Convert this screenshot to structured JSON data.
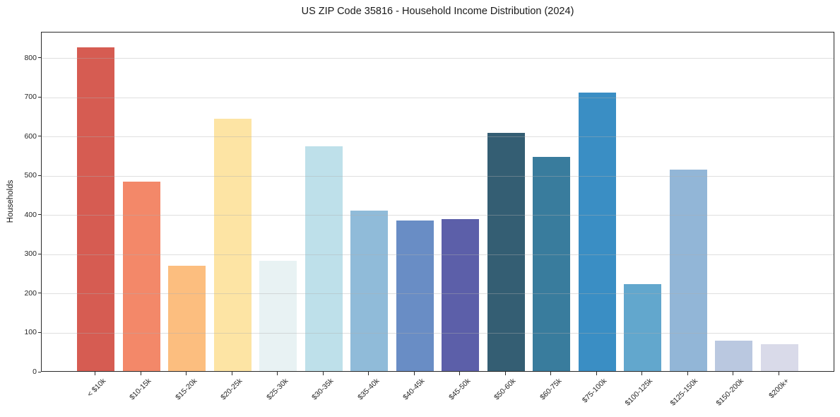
{
  "title": "US ZIP Code 35816 - Household Income Distribution (2024)",
  "chart_data": {
    "type": "bar",
    "title": "US ZIP Code 35816 - Household Income Distribution (2024)",
    "xlabel": "",
    "ylabel": "Households",
    "categories": [
      "< $10k",
      "$10-15k",
      "$15-20k",
      "$20-25k",
      "$25-30k",
      "$30-35k",
      "$35-40k",
      "$40-45k",
      "$45-50k",
      "$50-60k",
      "$60-75k",
      "$75-100k",
      "$100-125k",
      "$125-150k",
      "$150-200k",
      "$200k+"
    ],
    "values": [
      825,
      483,
      268,
      643,
      281,
      572,
      408,
      383,
      388,
      606,
      545,
      710,
      222,
      513,
      78,
      69
    ],
    "bar_colors": [
      "#d65c52",
      "#f38869",
      "#fcbe7f",
      "#fde4a4",
      "#e8f2f3",
      "#bee0ea",
      "#90bbd9",
      "#698dc5",
      "#5c5fa9",
      "#345e73",
      "#397c9d",
      "#3a8ec4",
      "#62a7cd",
      "#92b6d7",
      "#bac8e0",
      "#d9dae9"
    ],
    "yticks": [
      0,
      100,
      200,
      300,
      400,
      500,
      600,
      700,
      800
    ],
    "ylim": [
      0,
      866
    ],
    "grid": "horizontal",
    "gridlines_over_bars": true,
    "legend": "none",
    "xtick_rotation": 45,
    "background_color": "#ffffff",
    "spine_color": "#2a2a2a"
  }
}
